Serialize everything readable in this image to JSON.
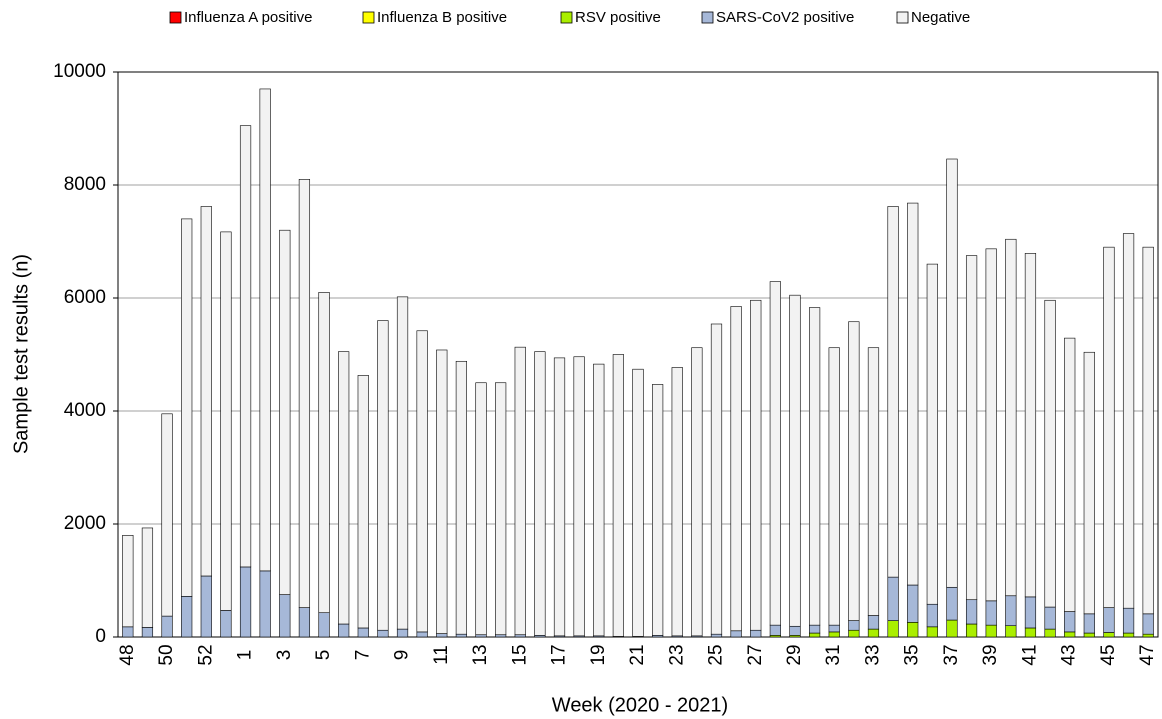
{
  "chart_data": {
    "type": "stacked_bar",
    "x_label": "Week (2020 - 2021)",
    "y_label": "Sample test results (n)",
    "categories": [
      "48",
      null,
      "50",
      null,
      "52",
      null,
      "1",
      null,
      "3",
      null,
      "5",
      null,
      "7",
      null,
      "9",
      null,
      "11",
      null,
      "13",
      null,
      "15",
      null,
      "17",
      null,
      "19",
      null,
      "21",
      null,
      "23",
      null,
      "25",
      null,
      "27",
      null,
      "29",
      null,
      "31",
      null,
      "33",
      null,
      "35",
      null,
      "37",
      null,
      "39",
      null,
      "41",
      null,
      "43",
      null,
      "45",
      null,
      "47"
    ],
    "series": [
      {
        "name": "Influenza A positive",
        "color": "#ff0000",
        "values": [
          0,
          0,
          0,
          0,
          0,
          0,
          0,
          0,
          0,
          0,
          0,
          0,
          0,
          0,
          0,
          0,
          0,
          0,
          0,
          0,
          0,
          0,
          0,
          0,
          0,
          0,
          0,
          0,
          0,
          0,
          0,
          0,
          0,
          0,
          0,
          0,
          0,
          0,
          0,
          0,
          0,
          0,
          0,
          0,
          0,
          0,
          0,
          0,
          0,
          0,
          0,
          0,
          0
        ]
      },
      {
        "name": "Influenza B positive",
        "color": "#ffff00",
        "values": [
          0,
          0,
          0,
          0,
          0,
          0,
          0,
          0,
          0,
          0,
          0,
          0,
          0,
          0,
          0,
          0,
          0,
          0,
          0,
          0,
          0,
          0,
          0,
          0,
          0,
          0,
          0,
          0,
          0,
          0,
          0,
          0,
          0,
          0,
          0,
          0,
          0,
          0,
          0,
          0,
          0,
          0,
          0,
          0,
          0,
          0,
          0,
          0,
          0,
          0,
          0,
          0,
          0
        ]
      },
      {
        "name": "RSV positive",
        "color": "#aaee00",
        "values": [
          0,
          0,
          0,
          0,
          0,
          0,
          0,
          0,
          0,
          0,
          0,
          0,
          0,
          0,
          0,
          0,
          0,
          0,
          0,
          0,
          0,
          0,
          0,
          0,
          0,
          0,
          0,
          0,
          0,
          0,
          0,
          0,
          0,
          30,
          30,
          70,
          90,
          120,
          140,
          290,
          260,
          180,
          300,
          230,
          210,
          200,
          160,
          140,
          90,
          70,
          80,
          70,
          50
        ]
      },
      {
        "name": "SARS-CoV2 positive",
        "color": "#a6b8d8",
        "values": [
          180,
          170,
          370,
          720,
          1080,
          470,
          1240,
          1170,
          750,
          520,
          430,
          230,
          160,
          120,
          140,
          90,
          60,
          50,
          40,
          40,
          40,
          30,
          20,
          20,
          20,
          10,
          10,
          30,
          20,
          20,
          50,
          110,
          120,
          180,
          160,
          140,
          120,
          170,
          240,
          770,
          660,
          400,
          580,
          430,
          430,
          530,
          550,
          390,
          360,
          340,
          440,
          440,
          360
        ]
      },
      {
        "name": "Negative",
        "color": "#f2f2f2",
        "values": [
          1620,
          1760,
          3580,
          6680,
          6540,
          6700,
          7810,
          8530,
          6450,
          7580,
          5670,
          4820,
          4470,
          5480,
          5880,
          5330,
          5020,
          4830,
          4460,
          4460,
          5090,
          5020,
          4920,
          4940,
          4810,
          4990,
          4730,
          4440,
          4750,
          5100,
          5490,
          5740,
          5840,
          6080,
          5860,
          5620,
          4910,
          5290,
          4740,
          6560,
          6760,
          6020,
          7580,
          6090,
          6230,
          6310,
          6080,
          5430,
          4840,
          4630,
          6380,
          6630,
          6490
        ]
      }
    ],
    "ylim": [
      0,
      10000
    ],
    "yticks": [
      0,
      2000,
      4000,
      6000,
      8000,
      10000
    ],
    "grid": true,
    "legend": "top"
  }
}
